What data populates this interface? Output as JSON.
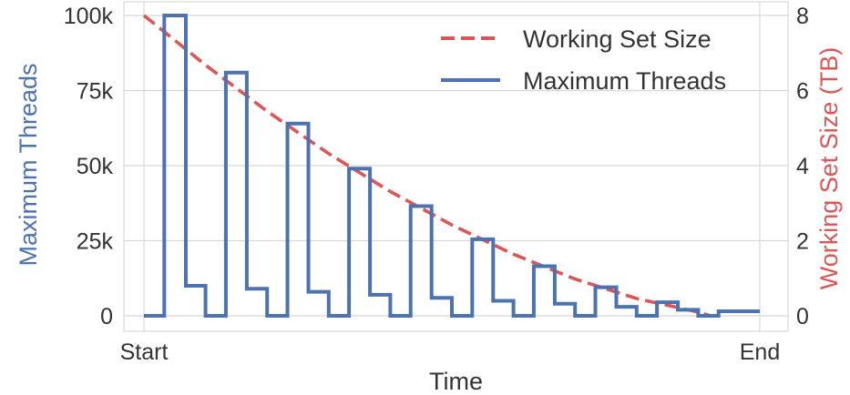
{
  "chart_data": {
    "type": "line",
    "xlabel": "Time",
    "x_ticks": [
      "Start",
      "End"
    ],
    "xlim": [
      0,
      1
    ],
    "left_axis": {
      "label": "Maximum Threads",
      "color": "#4C72B0",
      "ylim": [
        0,
        100000
      ],
      "ticks": [
        0,
        25000,
        50000,
        75000,
        100000
      ],
      "tick_labels": [
        "0",
        "25k",
        "50k",
        "75k",
        "100k"
      ]
    },
    "right_axis": {
      "label": "Working Set Size (TB)",
      "color": "#DD5555",
      "ylim": [
        0,
        8
      ],
      "ticks": [
        0,
        2,
        4,
        6,
        8
      ],
      "tick_labels": [
        "0",
        "2",
        "4",
        "6",
        "8"
      ]
    },
    "grid": true,
    "legend_position": "top-right",
    "series": [
      {
        "name": "Working Set Size",
        "axis": "right",
        "style": "dashed",
        "color": "#DD5555",
        "x": [
          0,
          0.1,
          0.2,
          0.3,
          0.4,
          0.5,
          0.6,
          0.7,
          0.8,
          0.9,
          0.92
        ],
        "y": [
          8.0,
          6.68,
          5.45,
          4.32,
          3.31,
          2.42,
          1.64,
          0.98,
          0.46,
          0.1,
          0.0
        ]
      },
      {
        "name": "Maximum Threads",
        "axis": "left",
        "style": "step",
        "color": "#4C72B0",
        "x": [
          0,
          0.033,
          0.068,
          0.1,
          0.133,
          0.167,
          0.2,
          0.233,
          0.267,
          0.3,
          0.333,
          0.367,
          0.4,
          0.433,
          0.467,
          0.5,
          0.533,
          0.567,
          0.6,
          0.633,
          0.667,
          0.7,
          0.733,
          0.767,
          0.8,
          0.833,
          0.867,
          0.9,
          0.933,
          0.967,
          1.0
        ],
        "y": [
          0,
          100000,
          10000,
          0,
          81000,
          9000,
          0,
          64000,
          8000,
          0,
          49000,
          7000,
          0,
          36500,
          6000,
          0,
          25500,
          5000,
          0,
          16500,
          4000,
          0,
          9500,
          3000,
          0,
          4500,
          2000,
          0,
          1500,
          1500,
          1500
        ]
      }
    ]
  }
}
